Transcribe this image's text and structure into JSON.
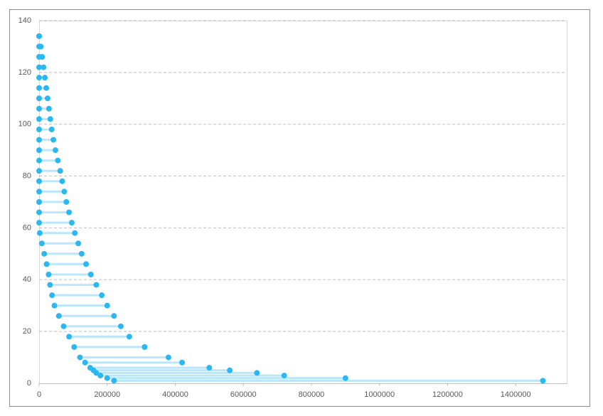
{
  "chart_data": {
    "type": "range-scatter",
    "segments": {
      "y": [
        134,
        130,
        126,
        122,
        118,
        114,
        110,
        106,
        102,
        98,
        94,
        90,
        86,
        82,
        78,
        74,
        70,
        66,
        62,
        58,
        54,
        50,
        46,
        42,
        38,
        34,
        30,
        26,
        22,
        18,
        14,
        10,
        8,
        6,
        5,
        4,
        3,
        2,
        1
      ],
      "x_start": [
        0,
        0,
        0,
        0,
        0,
        0,
        0,
        0,
        0,
        0,
        0,
        0,
        0,
        0,
        0,
        0,
        0,
        0,
        0,
        2000,
        8000,
        15000,
        22000,
        28000,
        32000,
        38000,
        45000,
        58000,
        72000,
        88000,
        103000,
        120000,
        135000,
        150000,
        160000,
        168000,
        180000,
        200000,
        220000
      ],
      "x_end": [
        0,
        5000,
        9000,
        13000,
        17000,
        21000,
        25000,
        29000,
        33000,
        37000,
        42000,
        48000,
        55000,
        62000,
        68000,
        74000,
        80000,
        88000,
        96000,
        105000,
        115000,
        125000,
        138000,
        152000,
        168000,
        184000,
        200000,
        220000,
        240000,
        265000,
        310000,
        380000,
        420000,
        500000,
        560000,
        640000,
        720000,
        900000,
        1480000
      ]
    },
    "color": "#2bb7f2",
    "line_color": "#b9e6fb",
    "xlim": [
      0,
      1550000
    ],
    "xticks": [
      0,
      200000,
      400000,
      600000,
      800000,
      1000000,
      1200000,
      1400000
    ],
    "ylim": [
      0,
      140
    ],
    "yticks": [
      0,
      20,
      40,
      60,
      80,
      100,
      120,
      140
    ],
    "grid": true
  }
}
